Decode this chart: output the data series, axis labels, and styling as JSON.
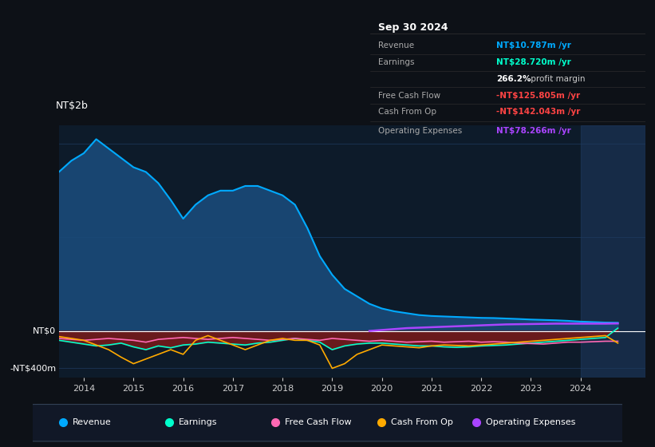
{
  "bg_color": "#0d1117",
  "plot_bg_color": "#0d1b2a",
  "grid_color": "#1e3a5f",
  "zero_line_color": "#ffffff",
  "ylabel_text": "NT$2b",
  "ytick_zero": "NT$0",
  "ytick_neg": "-NT$400m",
  "xticks": [
    2014,
    2015,
    2016,
    2017,
    2018,
    2019,
    2020,
    2021,
    2022,
    2023,
    2024
  ],
  "revenue_color": "#00aaff",
  "revenue_fill": "#1a4a7a",
  "earnings_color": "#00ffcc",
  "free_cash_flow_color": "#ff69b4",
  "cash_from_op_color": "#ffaa00",
  "operating_expenses_color": "#aa44ff",
  "earnings_fill_color": "#7a1a1a",
  "shaded_region_color": "#1e3a60",
  "shaded_x_start": 2024.0,
  "shaded_x_end": 2025.3,
  "revenue_x": [
    2013.5,
    2013.75,
    2014.0,
    2014.25,
    2014.5,
    2014.75,
    2015.0,
    2015.25,
    2015.5,
    2015.75,
    2016.0,
    2016.25,
    2016.5,
    2016.75,
    2017.0,
    2017.25,
    2017.5,
    2017.75,
    2018.0,
    2018.25,
    2018.5,
    2018.75,
    2019.0,
    2019.25,
    2019.5,
    2019.75,
    2020.0,
    2020.25,
    2020.5,
    2020.75,
    2021.0,
    2021.25,
    2021.5,
    2021.75,
    2022.0,
    2022.25,
    2022.5,
    2022.75,
    2023.0,
    2023.25,
    2023.5,
    2023.75,
    2024.0,
    2024.25,
    2024.5,
    2024.75
  ],
  "revenue_y": [
    1700,
    1820,
    1900,
    2050,
    1950,
    1850,
    1750,
    1700,
    1580,
    1400,
    1200,
    1350,
    1450,
    1500,
    1500,
    1550,
    1550,
    1500,
    1450,
    1350,
    1100,
    800,
    600,
    450,
    370,
    290,
    240,
    210,
    190,
    170,
    160,
    155,
    150,
    145,
    140,
    138,
    133,
    128,
    122,
    118,
    114,
    108,
    100,
    95,
    90,
    88
  ],
  "earnings_x": [
    2013.5,
    2013.75,
    2014.0,
    2014.25,
    2014.5,
    2014.75,
    2015.0,
    2015.25,
    2015.5,
    2015.75,
    2016.0,
    2016.25,
    2016.5,
    2016.75,
    2017.0,
    2017.25,
    2017.5,
    2017.75,
    2018.0,
    2018.25,
    2018.5,
    2018.75,
    2019.0,
    2019.25,
    2019.5,
    2019.75,
    2020.0,
    2020.25,
    2020.5,
    2020.75,
    2021.0,
    2021.25,
    2021.5,
    2021.75,
    2022.0,
    2022.25,
    2022.5,
    2022.75,
    2023.0,
    2023.25,
    2023.5,
    2023.75,
    2024.0,
    2024.25,
    2024.5,
    2024.75
  ],
  "earnings_y": [
    -100,
    -120,
    -140,
    -160,
    -150,
    -130,
    -170,
    -200,
    -160,
    -180,
    -150,
    -140,
    -120,
    -130,
    -140,
    -150,
    -130,
    -120,
    -100,
    -80,
    -100,
    -120,
    -200,
    -160,
    -140,
    -130,
    -130,
    -140,
    -150,
    -160,
    -160,
    -170,
    -175,
    -170,
    -160,
    -155,
    -150,
    -140,
    -130,
    -120,
    -110,
    -100,
    -90,
    -80,
    -70,
    30
  ],
  "fcf_x": [
    2013.5,
    2013.75,
    2014.0,
    2014.25,
    2014.5,
    2014.75,
    2015.0,
    2015.25,
    2015.5,
    2015.75,
    2016.0,
    2016.25,
    2016.5,
    2016.75,
    2017.0,
    2017.25,
    2017.5,
    2017.75,
    2018.0,
    2018.25,
    2018.5,
    2018.75,
    2019.0,
    2019.25,
    2019.5,
    2019.75,
    2020.0,
    2020.25,
    2020.5,
    2020.75,
    2021.0,
    2021.25,
    2021.5,
    2021.75,
    2022.0,
    2022.25,
    2022.5,
    2022.75,
    2023.0,
    2023.25,
    2023.5,
    2023.75,
    2024.0,
    2024.25,
    2024.5,
    2024.75
  ],
  "fcf_y": [
    -80,
    -90,
    -100,
    -90,
    -80,
    -90,
    -100,
    -120,
    -90,
    -80,
    -70,
    -80,
    -90,
    -80,
    -70,
    -80,
    -90,
    -100,
    -90,
    -80,
    -90,
    -100,
    -80,
    -90,
    -100,
    -110,
    -100,
    -110,
    -120,
    -115,
    -110,
    -120,
    -115,
    -110,
    -120,
    -115,
    -120,
    -130,
    -135,
    -140,
    -130,
    -120,
    -120,
    -115,
    -110,
    -110
  ],
  "cfo_x": [
    2013.5,
    2013.75,
    2014.0,
    2014.25,
    2014.5,
    2014.75,
    2015.0,
    2015.25,
    2015.5,
    2015.75,
    2016.0,
    2016.25,
    2016.5,
    2016.75,
    2017.0,
    2017.25,
    2017.5,
    2017.75,
    2018.0,
    2018.25,
    2018.5,
    2018.75,
    2019.0,
    2019.25,
    2019.5,
    2019.75,
    2020.0,
    2020.25,
    2020.5,
    2020.75,
    2021.0,
    2021.25,
    2021.5,
    2021.75,
    2022.0,
    2022.25,
    2022.5,
    2022.75,
    2023.0,
    2023.25,
    2023.5,
    2023.75,
    2024.0,
    2024.25,
    2024.5,
    2024.75
  ],
  "cfo_y": [
    -60,
    -80,
    -100,
    -150,
    -200,
    -280,
    -350,
    -300,
    -250,
    -200,
    -250,
    -100,
    -50,
    -100,
    -150,
    -200,
    -150,
    -100,
    -80,
    -100,
    -100,
    -150,
    -400,
    -350,
    -250,
    -200,
    -150,
    -160,
    -170,
    -180,
    -160,
    -150,
    -155,
    -160,
    -150,
    -140,
    -130,
    -120,
    -110,
    -100,
    -90,
    -80,
    -70,
    -60,
    -50,
    -130
  ],
  "opex_x": [
    2019.75,
    2020.0,
    2020.25,
    2020.5,
    2020.75,
    2021.0,
    2021.25,
    2021.5,
    2021.75,
    2022.0,
    2022.25,
    2022.5,
    2022.75,
    2023.0,
    2023.25,
    2023.5,
    2023.75,
    2024.0,
    2024.25,
    2024.5,
    2024.75
  ],
  "opex_y": [
    0,
    10,
    20,
    30,
    35,
    40,
    45,
    50,
    55,
    60,
    65,
    70,
    72,
    74,
    76,
    78,
    78,
    78,
    78,
    78,
    80
  ],
  "info_box_title": "Sep 30 2024",
  "info_rows": [
    {
      "label": "Revenue",
      "value": "NT$10.787m /yr",
      "value_color": "#00aaff",
      "bold_value": true
    },
    {
      "label": "Earnings",
      "value": "NT$28.720m /yr",
      "value_color": "#00ffcc",
      "bold_value": true
    },
    {
      "label": "",
      "value": "266.2%",
      "value2": " profit margin",
      "value_color": "#ffffff",
      "bold_value": true
    },
    {
      "label": "Free Cash Flow",
      "value": "-NT$125.805m /yr",
      "value_color": "#ff4444",
      "bold_value": true
    },
    {
      "label": "Cash From Op",
      "value": "-NT$142.043m /yr",
      "value_color": "#ff4444",
      "bold_value": true
    },
    {
      "label": "Operating Expenses",
      "value": "NT$78.266m /yr",
      "value_color": "#aa44ff",
      "bold_value": true
    }
  ],
  "legend": [
    {
      "label": "Revenue",
      "color": "#00aaff"
    },
    {
      "label": "Earnings",
      "color": "#00ffcc"
    },
    {
      "label": "Free Cash Flow",
      "color": "#ff69b4"
    },
    {
      "label": "Cash From Op",
      "color": "#ffaa00"
    },
    {
      "label": "Operating Expenses",
      "color": "#aa44ff"
    }
  ],
  "ylim": [
    -500,
    2200
  ],
  "xlim": [
    2013.5,
    2025.3
  ]
}
